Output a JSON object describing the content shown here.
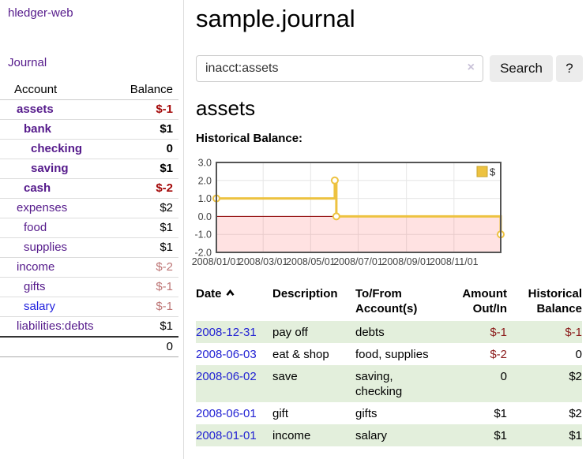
{
  "app": {
    "brand": "hledger-web",
    "nav_journal": "Journal"
  },
  "sidebar": {
    "table": {
      "header": {
        "account": "Account",
        "balance": "Balance"
      },
      "rows": [
        {
          "account": "assets",
          "balance": "$-1",
          "depth": 0,
          "bold": true,
          "balance_class": "neg"
        },
        {
          "account": "bank",
          "balance": "$1",
          "depth": 1,
          "bold": true,
          "balance_class": "pos"
        },
        {
          "account": "checking",
          "balance": "0",
          "depth": 2,
          "bold": true,
          "balance_class": "pos"
        },
        {
          "account": "saving",
          "balance": "$1",
          "depth": 2,
          "bold": true,
          "balance_class": "pos"
        },
        {
          "account": "cash",
          "balance": "$-2",
          "depth": 1,
          "bold": true,
          "balance_class": "neg"
        },
        {
          "account": "expenses",
          "balance": "$2",
          "depth": 0,
          "bold": false,
          "balance_class": "pos"
        },
        {
          "account": "food",
          "balance": "$1",
          "depth": 1,
          "bold": false,
          "balance_class": "pos"
        },
        {
          "account": "supplies",
          "balance": "$1",
          "depth": 1,
          "bold": false,
          "balance_class": "pos"
        },
        {
          "account": "income",
          "balance": "$-2",
          "depth": 0,
          "bold": false,
          "balance_class": "negmuted"
        },
        {
          "account": "gifts",
          "balance": "$-1",
          "depth": 1,
          "bold": false,
          "balance_class": "negmuted"
        },
        {
          "account": "salary",
          "balance": "$-1",
          "depth": 1,
          "bold": false,
          "balance_class": "negmuted",
          "link_class": "unvisited"
        },
        {
          "account": "liabilities:debts",
          "balance": "$1",
          "depth": 0,
          "bold": false,
          "balance_class": "pos"
        }
      ],
      "total": "0"
    }
  },
  "main": {
    "title": "sample.journal",
    "search": {
      "value": "inacct:assets",
      "clear_icon": "×",
      "button": "Search",
      "help_button": "?"
    },
    "account_heading": "assets",
    "chart_label": "Historical Balance:"
  },
  "chart_data": {
    "type": "line",
    "step": true,
    "title": "Historical Balance",
    "legend": [
      {
        "label": "$",
        "color": "#edc240",
        "position": "top-right"
      }
    ],
    "ylim": [
      -2,
      3
    ],
    "yticks": [
      {
        "v": 3,
        "label": "3.0"
      },
      {
        "v": 2,
        "label": "2.0"
      },
      {
        "v": 1,
        "label": "1.0"
      },
      {
        "v": 0,
        "label": "0.0"
      },
      {
        "v": -1,
        "label": "-1.0"
      },
      {
        "v": -2,
        "label": "-2.0"
      }
    ],
    "xdomain_days": [
      0,
      365
    ],
    "xticks": [
      {
        "d": 0,
        "label": "2008/01/01"
      },
      {
        "d": 60,
        "label": "2008/03/01"
      },
      {
        "d": 121,
        "label": "2008/05/01"
      },
      {
        "d": 182,
        "label": "2008/07/01"
      },
      {
        "d": 244,
        "label": "2008/09/01"
      },
      {
        "d": 305,
        "label": "2008/11/01"
      }
    ],
    "points": [
      {
        "date": "2008-01-01",
        "d": 0,
        "v": 1
      },
      {
        "date": "2008-06-01",
        "d": 152,
        "v": 2
      },
      {
        "date": "2008-06-03",
        "d": 154,
        "v": 0
      },
      {
        "date": "2008-12-31",
        "d": 365,
        "v": -1
      }
    ],
    "grid": true,
    "colors": {
      "series": "#edc240",
      "marker_fill": "#ffffff",
      "legend_border": "#c9a42e",
      "negative_region": "rgba(255,30,30,0.13)",
      "zero_line": "#8b0000",
      "grid": "#e6e6e6",
      "border": "#545454",
      "tick_text": "#444444"
    }
  },
  "register": {
    "headers": {
      "date": "Date",
      "description": "Description",
      "tofrom_line1": "To/From",
      "tofrom_line2": "Account(s)",
      "amount_line1": "Amount",
      "amount_line2": "Out/In",
      "historical_line1": "Historical",
      "historical_line2": "Balance"
    },
    "rows": [
      {
        "date": "2008-12-31",
        "description": "pay off",
        "accounts": "debts",
        "amount": "$-1",
        "amount_class": "neg",
        "balance": "$-1",
        "balance_class": "neg"
      },
      {
        "date": "2008-06-03",
        "description": "eat & shop",
        "accounts": "food, supplies",
        "amount": "$-2",
        "amount_class": "neg",
        "balance": "0",
        "balance_class": "pos"
      },
      {
        "date": "2008-06-02",
        "description": "save",
        "accounts": "saving, checking",
        "amount": "0",
        "amount_class": "pos",
        "balance": "$2",
        "balance_class": "pos"
      },
      {
        "date": "2008-06-01",
        "description": "gift",
        "accounts": "gifts",
        "amount": "$1",
        "amount_class": "pos",
        "balance": "$2",
        "balance_class": "pos"
      },
      {
        "date": "2008-01-01",
        "description": "income",
        "accounts": "salary",
        "amount": "$1",
        "amount_class": "pos",
        "balance": "$1",
        "balance_class": "pos"
      }
    ]
  }
}
